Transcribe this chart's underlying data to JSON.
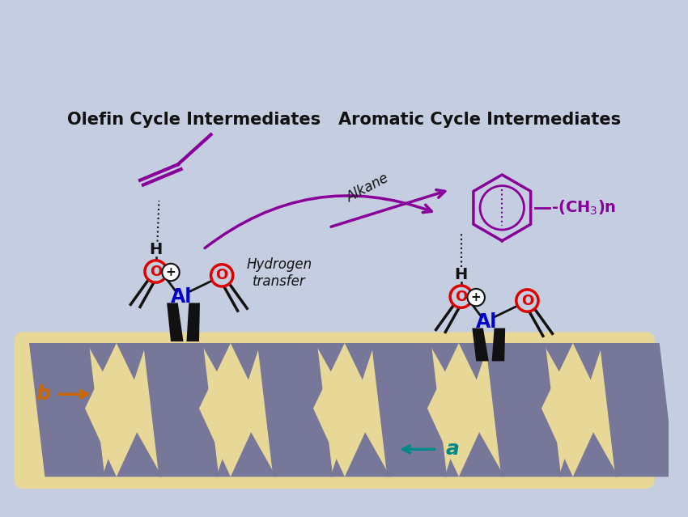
{
  "bg_color": "#c5cde0",
  "zeolite_fill": "#e8d898",
  "channel_color": "#777799",
  "olefin_label": "Olefin Cycle Intermediates",
  "aromatic_label": "Aromatic Cycle Intermediates",
  "hydrogen_transfer_label": "Hydrogen\ntransfer",
  "alkane_label": "Alkane",
  "b_label": "b",
  "a_label": "a",
  "b_color": "#cc6600",
  "a_color": "#008888",
  "purple_color": "#880099",
  "red_color": "#dd0000",
  "blue_color": "#0000cc",
  "black_color": "#111111"
}
